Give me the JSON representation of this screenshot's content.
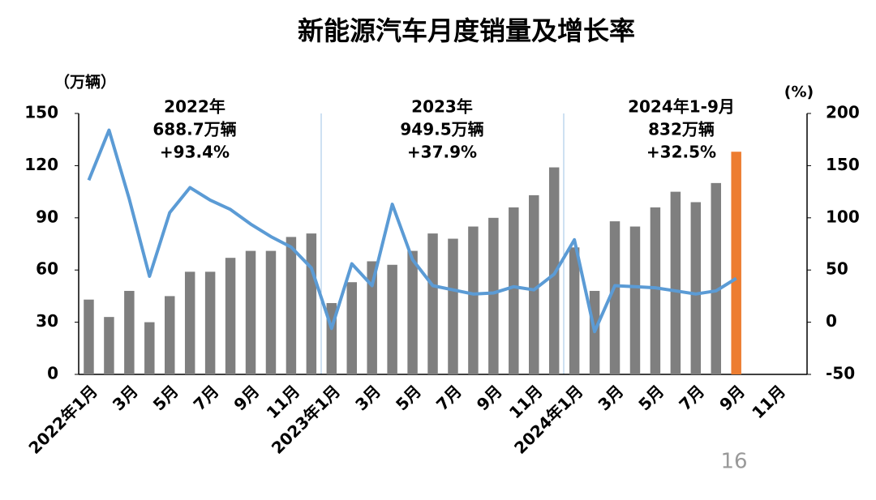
{
  "chart_data": {
    "type": "bar_line",
    "title": "新能源汽车月度销量及增长率",
    "y_label": "（万辆）",
    "y2_label": "(%)",
    "page_number": "16",
    "annotations": [
      [
        "2022年",
        "688.7万辆",
        "+93.4%"
      ],
      [
        "2023年",
        "949.5万辆",
        "+37.9%"
      ],
      [
        "2024年1-9月",
        "832万辆",
        "+32.5%"
      ]
    ],
    "categories": [
      "2022年1月",
      null,
      "3月",
      null,
      "5月",
      null,
      "7月",
      null,
      "9月",
      null,
      "11月",
      null,
      "2023年1月",
      null,
      "3月",
      null,
      "5月",
      null,
      "7月",
      null,
      "9月",
      null,
      "11月",
      null,
      "2024年1月",
      null,
      "3月",
      null,
      "5月",
      null,
      "7月",
      null,
      "9月",
      null,
      "11月",
      null
    ],
    "series": [
      {
        "type": "bar",
        "color": "#7f7f7f",
        "colors": [
          null,
          null,
          null,
          null,
          null,
          null,
          null,
          null,
          null,
          null,
          null,
          null,
          null,
          null,
          null,
          null,
          null,
          null,
          null,
          null,
          null,
          null,
          null,
          null,
          null,
          null,
          null,
          null,
          null,
          null,
          null,
          null,
          "#ed7d31",
          null,
          null,
          null
        ],
        "values": [
          43,
          33,
          48,
          30,
          45,
          59,
          59,
          67,
          71,
          71,
          79,
          81,
          41,
          53,
          65,
          63,
          71,
          81,
          78,
          85,
          90,
          96,
          103,
          119,
          73,
          48,
          88,
          85,
          96,
          105,
          99,
          110,
          128,
          null,
          null,
          null
        ]
      },
      {
        "type": "line",
        "axis": "y2",
        "color": "#5b9bd5",
        "values": [
          136,
          184,
          118,
          44,
          105,
          129,
          117,
          108,
          94,
          82,
          72,
          52,
          -6,
          56,
          35,
          113,
          60,
          35,
          31,
          27,
          28,
          34,
          31,
          46,
          79,
          -9,
          35,
          34,
          33,
          30,
          27,
          30,
          42,
          null,
          null,
          null
        ]
      }
    ],
    "ylim": [
      0,
      150
    ],
    "yticks": [
      0,
      30,
      60,
      90,
      120,
      150
    ],
    "y2lim": [
      -50,
      200
    ],
    "y2ticks": [
      -50,
      0,
      50,
      100,
      150,
      200
    ]
  }
}
